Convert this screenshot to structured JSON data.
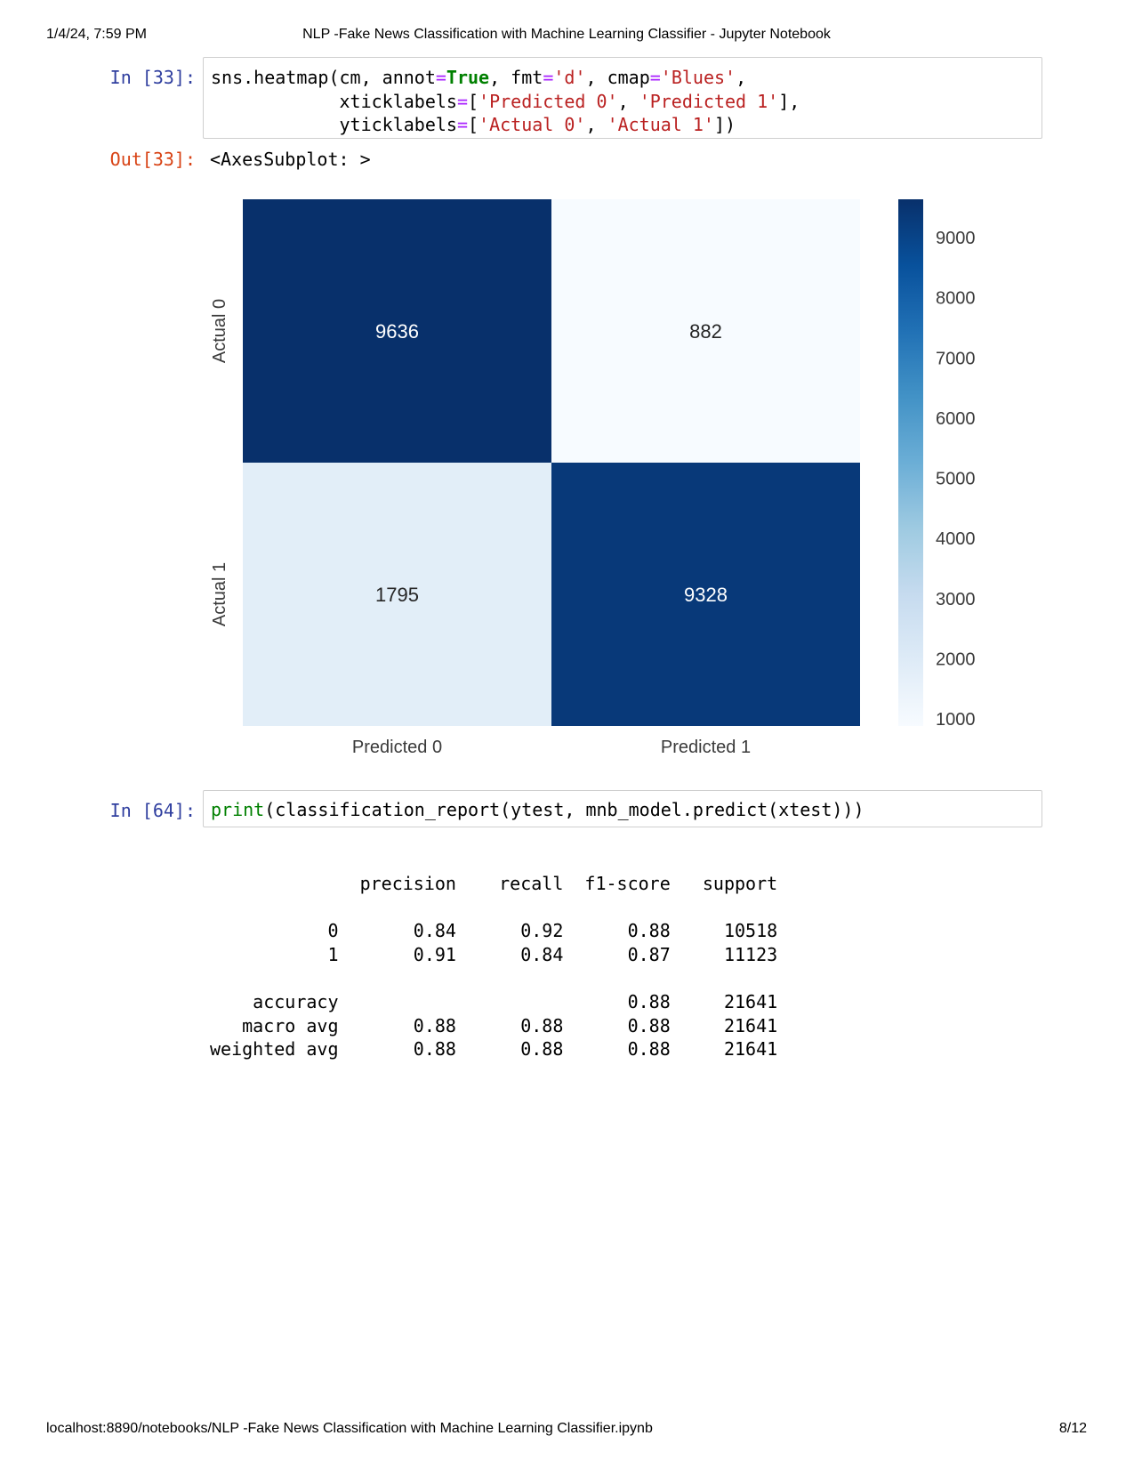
{
  "header": {
    "datetime": "1/4/24, 7:59 PM",
    "title": "NLP -Fake News Classification with Machine Learning Classifier - Jupyter Notebook"
  },
  "footer": {
    "url": "localhost:8890/notebooks/NLP -Fake News Classification with Machine Learning Classifier.ipynb",
    "page": "8/12"
  },
  "cells": [
    {
      "prompt": "In [33]:",
      "code_lines": [
        [
          [
            "",
            "sns.heatmap(cm, annot"
          ],
          [
            "op",
            "="
          ],
          [
            "kw",
            "True"
          ],
          [
            "",
            ", fmt"
          ],
          [
            "op",
            "="
          ],
          [
            "str",
            "'d'"
          ],
          [
            "",
            ", cmap"
          ],
          [
            "op",
            "="
          ],
          [
            "str",
            "'Blues'"
          ],
          [
            "",
            ","
          ]
        ],
        [
          [
            "",
            "            xticklabels"
          ],
          [
            "op",
            "="
          ],
          [
            "",
            "["
          ],
          [
            "str",
            "'Predicted 0'"
          ],
          [
            "",
            ", "
          ],
          [
            "str",
            "'Predicted 1'"
          ],
          [
            "",
            "],"
          ]
        ],
        [
          [
            "",
            "            yticklabels"
          ],
          [
            "op",
            "="
          ],
          [
            "",
            "["
          ],
          [
            "str",
            "'Actual 0'"
          ],
          [
            "",
            ", "
          ],
          [
            "str",
            "'Actual 1'"
          ],
          [
            "",
            "])"
          ]
        ]
      ],
      "out_prompt": "Out[33]:",
      "out_text": "<AxesSubplot: >"
    },
    {
      "prompt": "In [64]:",
      "code_lines": [
        [
          [
            "bi",
            "print"
          ],
          [
            "",
            "(classification_report(ytest, mnb_model.predict(xtest)))"
          ]
        ]
      ],
      "stdout": "              precision    recall  f1-score   support\n\n           0       0.84      0.92      0.88     10518\n           1       0.91      0.84      0.87     11123\n\n    accuracy                           0.88     21641\n   macro avg       0.88      0.88      0.88     21641\nweighted avg       0.88      0.88      0.88     21641"
    }
  ],
  "chart_data": {
    "type": "heatmap",
    "x_labels": [
      "Predicted 0",
      "Predicted 1"
    ],
    "y_labels": [
      "Actual 0",
      "Actual 1"
    ],
    "values": [
      [
        9636,
        882
      ],
      [
        1795,
        9328
      ]
    ],
    "annotate": true,
    "colormap": "Blues",
    "colorbar": {
      "ticks": [
        1000,
        2000,
        3000,
        4000,
        5000,
        6000,
        7000,
        8000,
        9000
      ],
      "range": [
        882,
        9636
      ]
    },
    "title": "",
    "xlabel": "",
    "ylabel": ""
  }
}
